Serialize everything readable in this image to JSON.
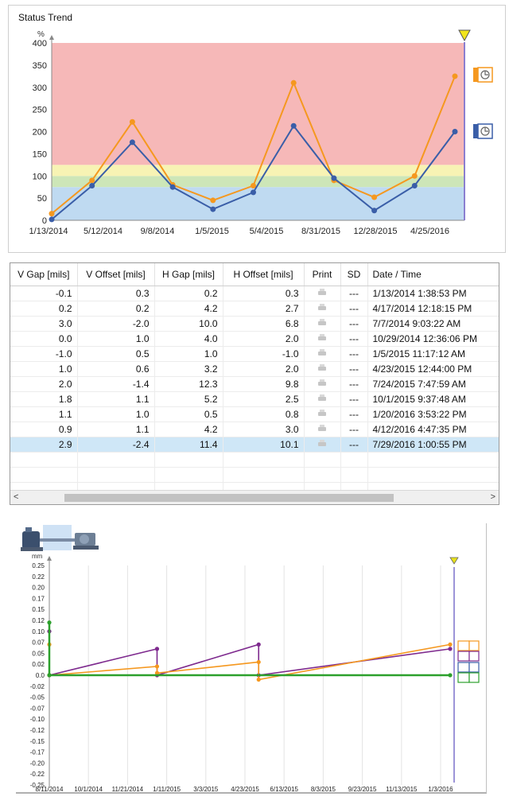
{
  "status_trend": {
    "title": "Status Trend",
    "unit_label": "%",
    "colors": {
      "red_band": "#f6b8b8",
      "yellow_band": "#f7f3b4",
      "green_band": "#cde6b8",
      "blue_band": "#bfdaf1",
      "series_orange": "#f5981f",
      "series_blue": "#3a5ea8"
    },
    "chart_data": {
      "type": "line",
      "ylim": [
        0,
        400
      ],
      "y_ticks": [
        0,
        50,
        100,
        150,
        200,
        250,
        300,
        350,
        400
      ],
      "x_tick_labels": [
        "1/13/2014",
        "5/12/2014",
        "9/8/2014",
        "1/5/2015",
        "5/4/2015",
        "8/31/2015",
        "12/28/2015",
        "4/25/2016"
      ],
      "bands": [
        {
          "from": 0,
          "to": 75,
          "color": "blue"
        },
        {
          "from": 75,
          "to": 100,
          "color": "green"
        },
        {
          "from": 100,
          "to": 125,
          "color": "yellow"
        },
        {
          "from": 125,
          "to": 400,
          "color": "red"
        }
      ],
      "dates": [
        "1/13/2014",
        "4/17/2014",
        "7/7/2014",
        "10/29/2014",
        "1/5/2015",
        "4/23/2015",
        "7/24/2015",
        "10/1/2015",
        "1/20/2016",
        "4/12/2016",
        "7/29/2016"
      ],
      "series": [
        {
          "color": "orange",
          "values": [
            15,
            90,
            222,
            80,
            45,
            78,
            310,
            90,
            52,
            100,
            325
          ]
        },
        {
          "color": "blue",
          "values": [
            2,
            78,
            176,
            75,
            25,
            63,
            213,
            95,
            22,
            78,
            200
          ]
        }
      ]
    }
  },
  "table": {
    "columns": [
      "V Gap [mils]",
      "V Offset [mils]",
      "H Gap [mils]",
      "H Offset [mils]",
      "Print",
      "SD",
      "Date / Time"
    ],
    "rows": [
      [
        "-0.1",
        "0.3",
        "0.2",
        "0.3",
        "",
        "---",
        "1/13/2014 1:38:53 PM"
      ],
      [
        "0.2",
        "0.2",
        "4.2",
        "2.7",
        "",
        "---",
        "4/17/2014 12:18:15 PM"
      ],
      [
        "3.0",
        "-2.0",
        "10.0",
        "6.8",
        "",
        "---",
        "7/7/2014 9:03:22 AM"
      ],
      [
        "0.0",
        "1.0",
        "4.0",
        "2.0",
        "",
        "---",
        "10/29/2014 12:36:06 PM"
      ],
      [
        "-1.0",
        "0.5",
        "1.0",
        "-1.0",
        "",
        "---",
        "1/5/2015 11:17:12 AM"
      ],
      [
        "1.0",
        "0.6",
        "3.2",
        "2.0",
        "",
        "---",
        "4/23/2015 12:44:00 PM"
      ],
      [
        "2.0",
        "-1.4",
        "12.3",
        "9.8",
        "",
        "---",
        "7/24/2015 7:47:59 AM"
      ],
      [
        "1.8",
        "1.1",
        "5.2",
        "2.5",
        "",
        "---",
        "10/1/2015 9:37:48 AM"
      ],
      [
        "1.1",
        "1.0",
        "0.5",
        "0.8",
        "",
        "---",
        "1/20/2016 3:53:22 PM"
      ],
      [
        "0.9",
        "1.1",
        "4.2",
        "3.0",
        "",
        "---",
        "4/12/2016 4:47:35 PM"
      ],
      [
        "2.9",
        "-2.4",
        "11.4",
        "10.1",
        "",
        "---",
        "7/29/2016 1:00:55 PM"
      ]
    ],
    "selected_row": 10,
    "scroll_left": "<",
    "scroll_right": ">"
  },
  "tolerance_chart": {
    "unit_label": "mm",
    "colors": {
      "purple": "#7e2a8e",
      "orange": "#f5981f",
      "green": "#2ca02c"
    },
    "chart_data": {
      "type": "line",
      "ylim": [
        -0.25,
        0.25
      ],
      "y_ticks": [
        "0.25",
        "0.22",
        "0.20",
        "0.17",
        "0.15",
        "0.12",
        "0.10",
        "0.07",
        "0.05",
        "0.02",
        "0.0",
        "-0.02",
        "-0.05",
        "-0.07",
        "-0.10",
        "-0.12",
        "-0.15",
        "-0.17",
        "-0.20",
        "-0.22",
        "-0.25"
      ],
      "x_tick_labels": [
        "8/11/2014",
        "10/1/2014",
        "11/21/2014",
        "1/11/2015",
        "3/3/2015",
        "4/23/2015",
        "6/13/2015",
        "8/3/2015",
        "9/23/2015",
        "11/13/2015",
        "1/3/2016"
      ],
      "series": [
        {
          "color": "purple",
          "points": [
            [
              "8/11/2014",
              0.1
            ],
            [
              "8/11/2014",
              0.0
            ],
            [
              "2/20/2015",
              0.06
            ],
            [
              "2/20/2015",
              0.0
            ],
            [
              "8/21/2015",
              0.07
            ],
            [
              "8/21/2015",
              0.0
            ],
            [
              "7/29/2016",
              0.06
            ]
          ]
        },
        {
          "color": "orange",
          "points": [
            [
              "8/11/2014",
              0.07
            ],
            [
              "8/11/2014",
              0.0
            ],
            [
              "2/20/2015",
              0.02
            ],
            [
              "2/20/2015",
              0.005
            ],
            [
              "8/21/2015",
              0.03
            ],
            [
              "8/21/2015",
              -0.01
            ],
            [
              "7/29/2016",
              0.07
            ]
          ]
        },
        {
          "color": "green",
          "points": [
            [
              "8/11/2014",
              0.12
            ],
            [
              "8/11/2014",
              0.0
            ],
            [
              "7/29/2016",
              0.0
            ]
          ]
        }
      ]
    }
  }
}
